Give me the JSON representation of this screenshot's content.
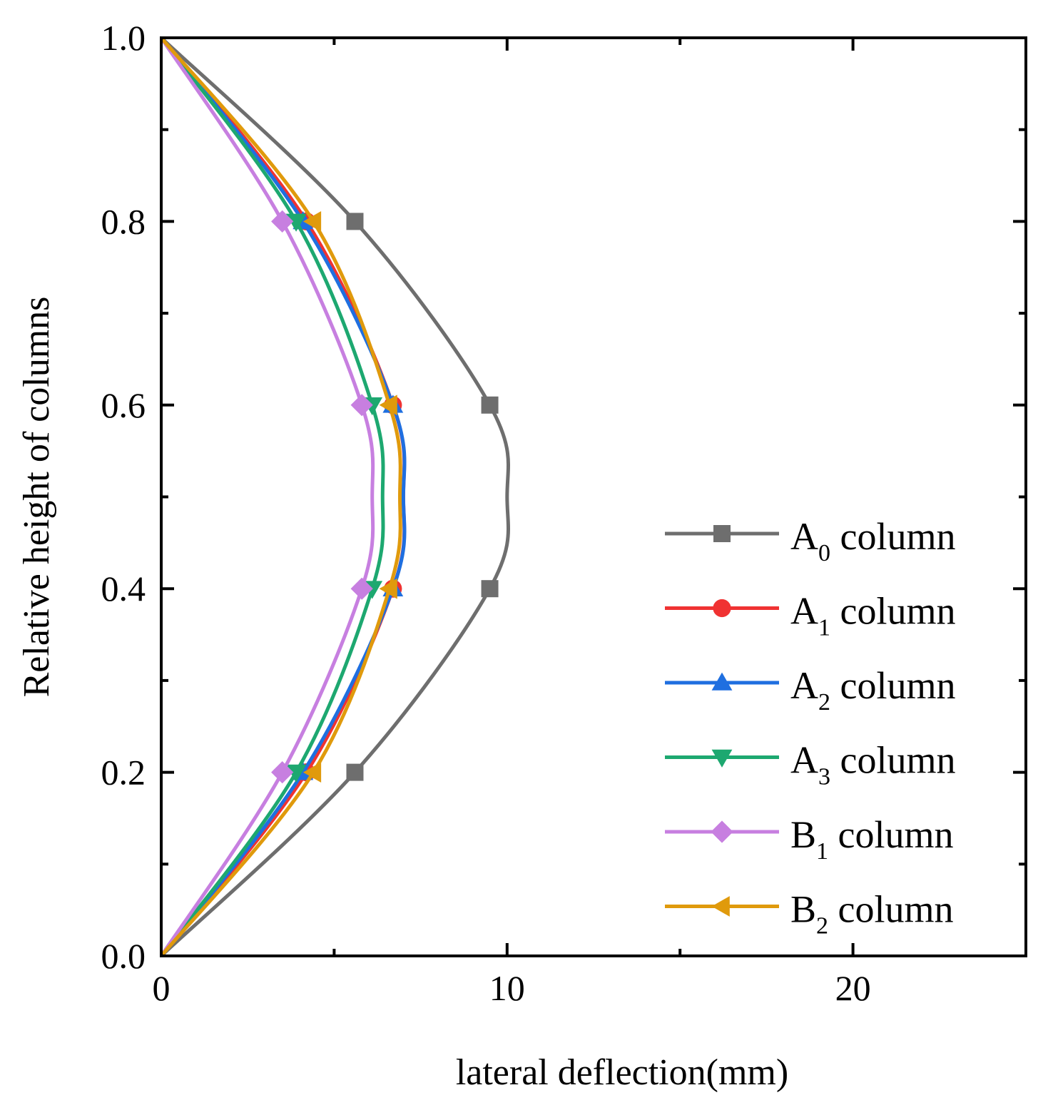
{
  "chart_data": {
    "type": "line",
    "title": "",
    "xlabel": "lateral deflection(mm)",
    "ylabel": "Relative height of columns",
    "xlim": [
      0,
      25
    ],
    "ylim": [
      0,
      1.0
    ],
    "xticks": [
      0,
      10,
      20
    ],
    "xtick_labels": [
      "0",
      "10",
      "20"
    ],
    "xminor": [
      5,
      15,
      25
    ],
    "yticks": [
      0.0,
      0.2,
      0.4,
      0.6,
      0.8,
      1.0
    ],
    "ytick_labels": [
      "0.0",
      "0.2",
      "0.4",
      "0.6",
      "0.8",
      "1.0"
    ],
    "yminor": [
      0.1,
      0.3,
      0.5,
      0.7,
      0.9
    ],
    "grid": false,
    "legend_position": "bottom-right",
    "series": [
      {
        "name": "A0 column",
        "label_main": "A",
        "label_sub": "0",
        "label_tail": " column",
        "color": "#6e6e6e",
        "marker": "square",
        "x": [
          0,
          5.6,
          9.5,
          10.0,
          9.5,
          5.6,
          0
        ],
        "y": [
          0,
          0.2,
          0.4,
          0.5,
          0.6,
          0.8,
          1.0
        ],
        "markers_at": [
          1,
          2,
          4,
          5
        ]
      },
      {
        "name": "A1 column",
        "label_main": "A",
        "label_sub": "1",
        "label_tail": " column",
        "color": "#f03232",
        "marker": "circle",
        "x": [
          0,
          4.2,
          6.7,
          7.0,
          6.7,
          4.2,
          0
        ],
        "y": [
          0,
          0.2,
          0.4,
          0.5,
          0.6,
          0.8,
          1.0
        ],
        "markers_at": [
          1,
          2,
          4,
          5
        ]
      },
      {
        "name": "A2 column",
        "label_main": "A",
        "label_sub": "2",
        "label_tail": " column",
        "color": "#1f6fe0",
        "marker": "triangle-up",
        "x": [
          0,
          4.1,
          6.7,
          7.0,
          6.7,
          4.1,
          0
        ],
        "y": [
          0,
          0.2,
          0.4,
          0.5,
          0.6,
          0.8,
          1.0
        ],
        "markers_at": [
          1,
          2,
          4,
          5
        ]
      },
      {
        "name": "A3 column",
        "label_main": "A",
        "label_sub": "3",
        "label_tail": " column",
        "color": "#1da870",
        "marker": "triangle-down",
        "x": [
          0,
          3.9,
          6.1,
          6.4,
          6.1,
          3.9,
          0
        ],
        "y": [
          0,
          0.2,
          0.4,
          0.5,
          0.6,
          0.8,
          1.0
        ],
        "markers_at": [
          1,
          2,
          4,
          5
        ]
      },
      {
        "name": "B1 column",
        "label_main": "B",
        "label_sub": "1",
        "label_tail": " column",
        "color": "#c77fe0",
        "marker": "diamond",
        "x": [
          0,
          3.5,
          5.8,
          6.1,
          5.8,
          3.5,
          0
        ],
        "y": [
          0,
          0.2,
          0.4,
          0.5,
          0.6,
          0.8,
          1.0
        ],
        "markers_at": [
          1,
          2,
          4,
          5
        ]
      },
      {
        "name": "B2 column",
        "label_main": "B",
        "label_sub": "2",
        "label_tail": " column",
        "color": "#e09a0c",
        "marker": "triangle-left",
        "x": [
          0,
          4.4,
          6.6,
          6.9,
          6.6,
          4.4,
          0
        ],
        "y": [
          0,
          0.2,
          0.4,
          0.5,
          0.6,
          0.8,
          1.0
        ],
        "markers_at": [
          1,
          2,
          4,
          5
        ]
      }
    ]
  }
}
